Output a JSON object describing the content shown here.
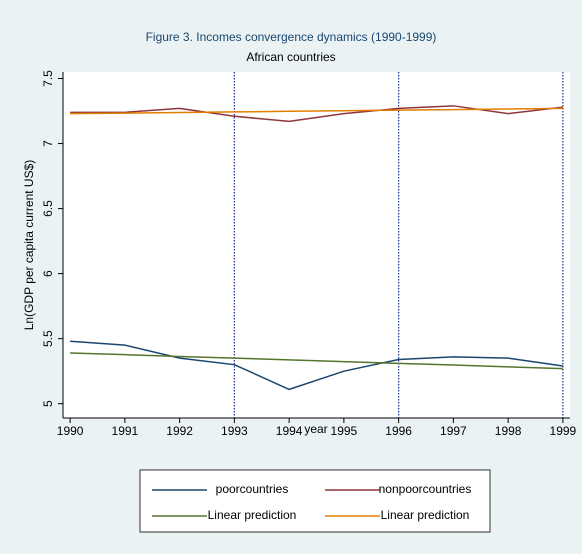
{
  "chart_data": {
    "type": "line",
    "title": "Figure 3. Incomes convergence dynamics (1990-1999)",
    "subtitle": "African countries",
    "x_label": "year",
    "y_label": "Ln(GDP per capita current US$)",
    "x": [
      1990,
      1991,
      1992,
      1993,
      1994,
      1995,
      1996,
      1997,
      1998,
      1999
    ],
    "series": [
      {
        "name": "poorcountries",
        "color": "#1a476f",
        "values": [
          5.48,
          5.45,
          5.35,
          5.3,
          5.11,
          5.25,
          5.34,
          5.36,
          5.35,
          5.29
        ]
      },
      {
        "name": "nonpoorcountries",
        "color": "#90353b",
        "values": [
          7.24,
          7.24,
          7.27,
          7.21,
          7.17,
          7.23,
          7.27,
          7.29,
          7.23,
          7.28
        ]
      },
      {
        "name": "Linear prediction",
        "color": "#55752f",
        "values": [
          5.39,
          5.377,
          5.363,
          5.35,
          5.337,
          5.323,
          5.31,
          5.297,
          5.283,
          5.27
        ]
      },
      {
        "name": "Linear prediction",
        "color": "#e37e00",
        "values": [
          7.23,
          7.234,
          7.239,
          7.243,
          7.248,
          7.252,
          7.257,
          7.261,
          7.266,
          7.27
        ]
      }
    ],
    "xlim": [
      1989.87,
      1999.13
    ],
    "xticks": [
      1990,
      1991,
      1992,
      1993,
      1994,
      1995,
      1996,
      1997,
      1998,
      1999
    ],
    "ylim": [
      4.89,
      7.55
    ],
    "yticks": [
      5,
      5.5,
      6,
      6.5,
      7,
      7.5
    ],
    "xlines": [
      1993,
      1996,
      1999
    ],
    "xline_color": "#1a2f8f",
    "legend": "bottom"
  }
}
